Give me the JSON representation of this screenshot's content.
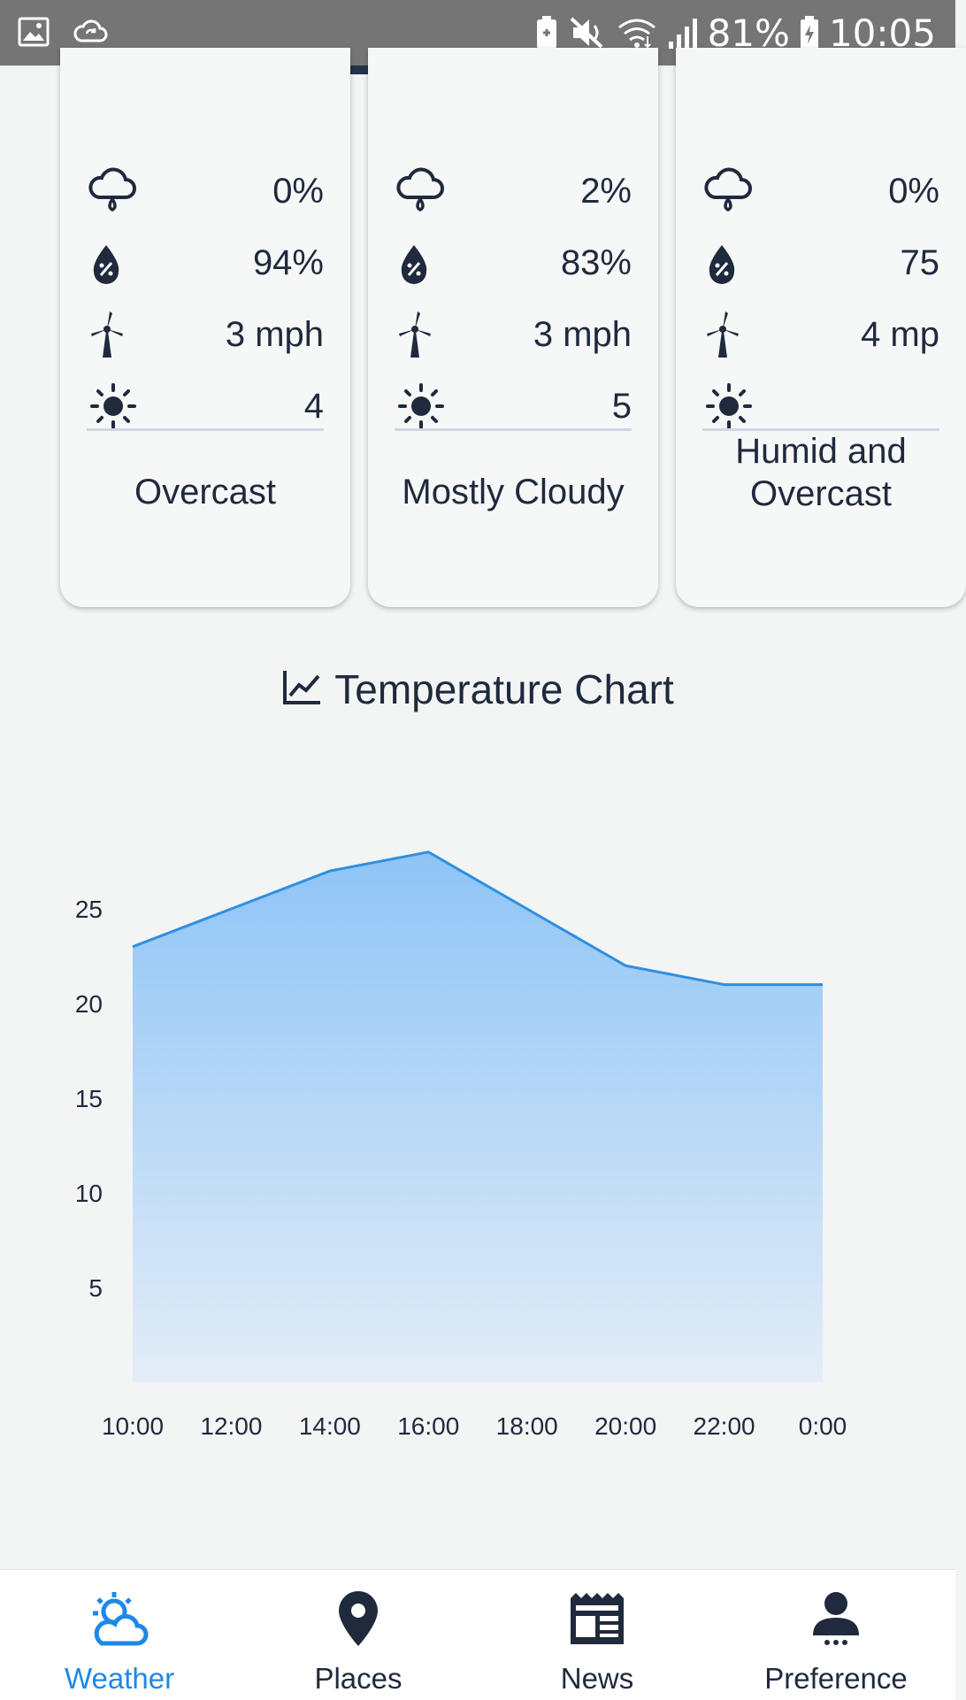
{
  "status_bar": {
    "battery": "81%",
    "time": "10:05",
    "icons": [
      "image-icon",
      "cloud-sync-icon",
      "battery-saver-icon",
      "mute-icon",
      "wifi-icon",
      "signal-icon",
      "battery-charging-icon"
    ]
  },
  "cards": [
    {
      "precip": "0%",
      "humidity": "94%",
      "wind": "3 mph",
      "uv": "4",
      "description": [
        "Overcast"
      ]
    },
    {
      "precip": "2%",
      "humidity": "83%",
      "wind": "3 mph",
      "uv": "5",
      "description": [
        "Mostly Cloudy"
      ]
    },
    {
      "precip": "0%",
      "humidity": "75",
      "wind": "4 mp",
      "uv": "",
      "description": [
        "Humid and",
        "Overcast"
      ]
    }
  ],
  "chart_title": "Temperature Chart",
  "chart_data": {
    "type": "area",
    "x": [
      "10:00",
      "12:00",
      "14:00",
      "16:00",
      "18:00",
      "20:00",
      "22:00",
      "0:00"
    ],
    "values": [
      23,
      25,
      27,
      28,
      25,
      22,
      21,
      21
    ],
    "yticks": [
      5,
      10,
      15,
      20,
      25
    ],
    "ylim": [
      0,
      30
    ],
    "grid": false,
    "colors": {
      "line": "#2f8fe0",
      "fill_top": "#8ec4f6",
      "fill_bottom": "#e3edf7"
    }
  },
  "nav": {
    "items": [
      {
        "label": "Weather",
        "icon": "weather-icon",
        "active": true
      },
      {
        "label": "Places",
        "icon": "place-pin-icon",
        "active": false
      },
      {
        "label": "News",
        "icon": "news-icon",
        "active": false
      },
      {
        "label": "Preference",
        "icon": "person-icon",
        "active": false
      }
    ],
    "active_color": "#1e88e5",
    "inactive_color": "#1f2a3d"
  }
}
